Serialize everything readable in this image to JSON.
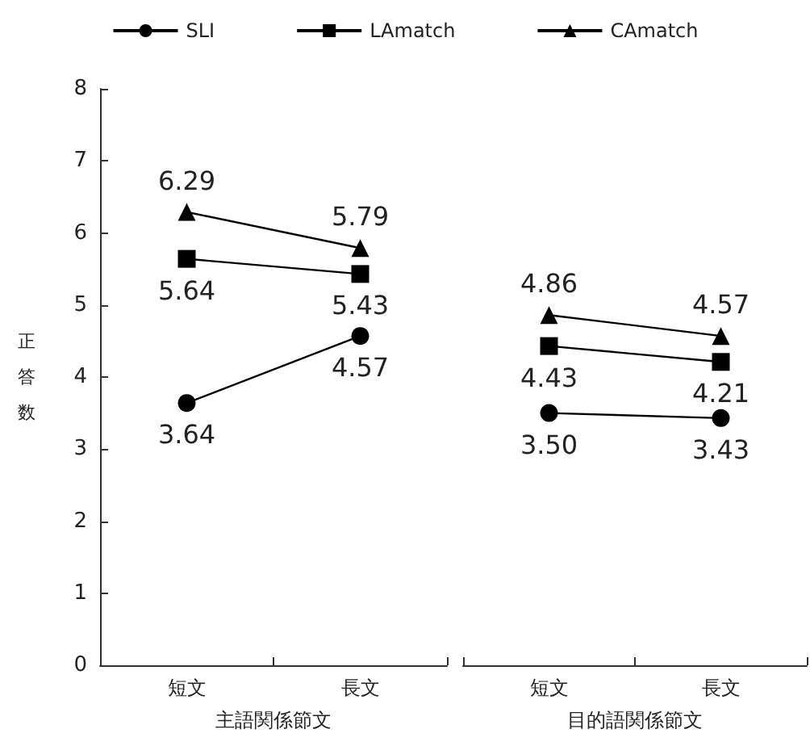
{
  "chart_data": [
    {
      "type": "line",
      "xlabel": "主語関係節文",
      "ylabel": "正答数",
      "categories": [
        "短文",
        "長文"
      ],
      "ylim": [
        0,
        8
      ],
      "yticks": [
        0,
        1,
        2,
        3,
        4,
        5,
        6,
        7,
        8
      ],
      "grid": false,
      "legend": "top",
      "series": [
        {
          "name": "SLI",
          "color": "#000000",
          "marker": "circle",
          "values": [
            3.64,
            4.57
          ],
          "value_labels": [
            "3.64",
            "4.57"
          ]
        },
        {
          "name": "LAmatch",
          "color": "#000000",
          "marker": "square",
          "values": [
            5.64,
            5.43
          ],
          "value_labels": [
            "5.64",
            "5.43"
          ]
        },
        {
          "name": "CAmatch",
          "color": "#000000",
          "marker": "triangle",
          "values": [
            6.29,
            5.79
          ],
          "value_labels": [
            "6.29",
            "5.79"
          ]
        }
      ]
    },
    {
      "type": "line",
      "xlabel": "目的語関係節文",
      "categories": [
        "短文",
        "長文"
      ],
      "ylim": [
        0,
        8
      ],
      "yticks": [
        0,
        1,
        2,
        3,
        4,
        5,
        6,
        7,
        8
      ],
      "grid": false,
      "tick_labels": "x",
      "series": [
        {
          "color": "#000000",
          "marker": "circle",
          "values": [
            3.5,
            3.43
          ],
          "value_labels": [
            "3.50",
            "3.43"
          ]
        },
        {
          "color": "#000000",
          "marker": "square",
          "values": [
            4.43,
            4.21
          ],
          "value_labels": [
            "4.43",
            "4.21"
          ]
        },
        {
          "color": "#000000",
          "marker": "triangle",
          "values": [
            4.86,
            4.57
          ],
          "value_labels": [
            "4.86",
            "4.57"
          ]
        }
      ]
    }
  ]
}
